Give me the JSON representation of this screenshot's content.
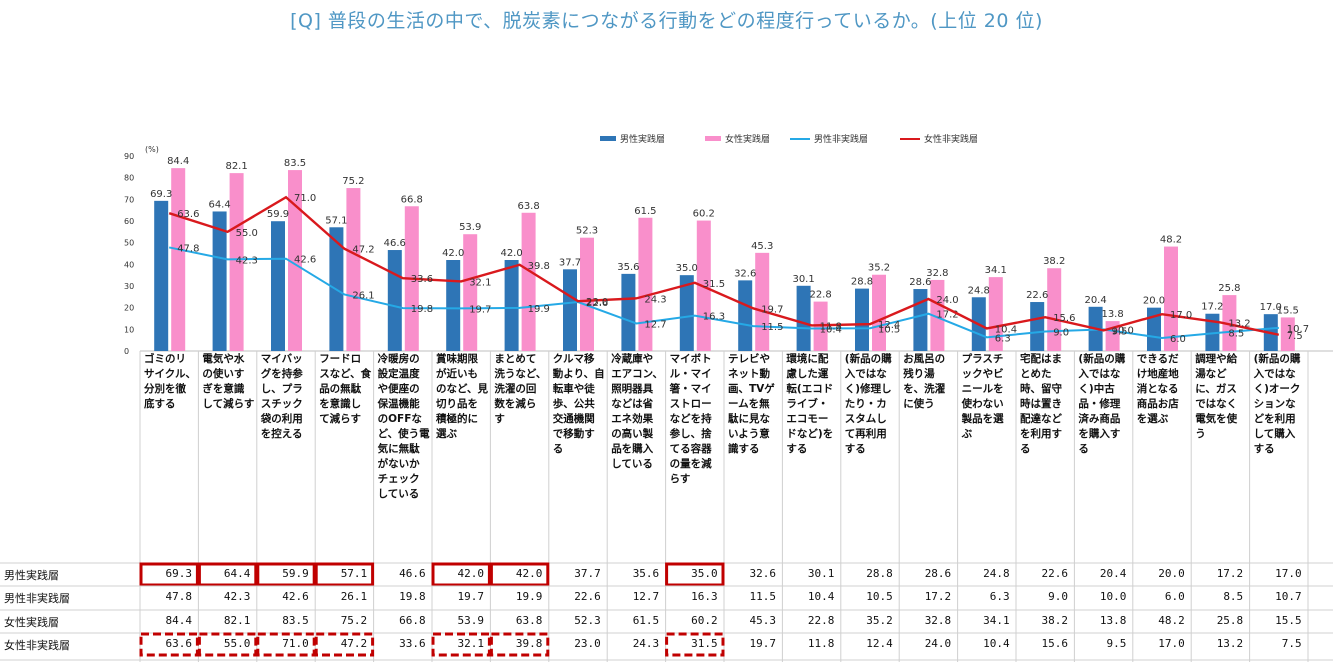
{
  "title": "[Q] 普段の生活の中で、脱炭素につながる行動をどの程度行っているか。(上位 20 位)",
  "chart_data": {
    "type": "bar",
    "title": "[Q] 普段の生活の中で、脱炭素につながる行動をどの程度行っているか。(上位 20 位)",
    "ylabel": "(%)",
    "ylim": [
      0,
      90
    ],
    "yticks": [
      0,
      10,
      20,
      30,
      40,
      50,
      60,
      70,
      80,
      90
    ],
    "categories": [
      "ゴミのリサイクル、分別を徹底する",
      "電気や水の使いすぎを意識して減らす",
      "マイバッグを持参し、プラスチック袋の利用を控える",
      "フードロスなど、食品の無駄を意識して減らす",
      "冷暖房の設定温度や便座の保温機能のOFFなど、使う電気に無駄がないかチェックしている",
      "賞味期限が近いものなど、見切り品を積極的に選ぶ",
      "まとめて洗うなど、洗濯の回数を減らす",
      "クルマ移動より、自転車や徒歩、公共交通機関で移動する",
      "冷蔵庫やエアコン、照明器具などは省エネ効果の高い製品を購入している",
      "マイボトル・マイ箸・マイストローなどを持参し、捨てる容器の量を減らす",
      "テレビやネット動画、TVゲームを無駄に見ないよう意識する",
      "環境に配慮した運転(エコドライブ・エコモードなど)をする",
      "(新品の購入ではなく)修理したり・カスタムして再利用する",
      "お風呂の残り湯を、洗濯に使う",
      "プラスチックやビニールを使わない製品を選ぶ",
      "宅配はまとめた時、留守時は置き配達などを利用する",
      "(新品の購入ではなく)中古品・修理済み商品を購入する",
      "できるだけ地産地消となる商品お店を選ぶ",
      "調理や給湯などに、ガスではなく電気を使う",
      "(新品の購入ではなく)オークションなどを利用して購入する"
    ],
    "series": [
      {
        "name": "男性実践層",
        "kind": "bar",
        "color": "#2e75b6",
        "values": [
          69.3,
          64.4,
          59.9,
          57.1,
          46.6,
          42.0,
          42.0,
          37.7,
          35.6,
          35.0,
          32.6,
          30.1,
          28.8,
          28.6,
          24.8,
          22.6,
          20.4,
          20.0,
          17.2,
          17.0
        ]
      },
      {
        "name": "女性実践層",
        "kind": "bar",
        "color": "#f98fcb",
        "values": [
          84.4,
          82.1,
          83.5,
          75.2,
          66.8,
          53.9,
          63.8,
          52.3,
          61.5,
          60.2,
          45.3,
          22.8,
          35.2,
          32.8,
          34.1,
          38.2,
          13.8,
          48.2,
          25.8,
          15.5
        ]
      },
      {
        "name": "男性非実践層",
        "kind": "line",
        "color": "#25a9e6",
        "values": [
          47.8,
          42.3,
          42.6,
          26.1,
          19.8,
          19.7,
          19.9,
          22.6,
          12.7,
          16.3,
          11.5,
          10.4,
          10.5,
          17.2,
          6.3,
          9.0,
          10.0,
          6.0,
          8.5,
          10.7
        ]
      },
      {
        "name": "女性非実践層",
        "kind": "line",
        "color": "#d9191d",
        "values": [
          63.6,
          55.0,
          71.0,
          47.2,
          33.6,
          32.1,
          39.8,
          23.0,
          24.3,
          31.5,
          19.7,
          11.8,
          12.4,
          24.0,
          10.4,
          15.6,
          9.5,
          17.0,
          13.2,
          7.5
        ]
      }
    ],
    "legend": "top-right"
  },
  "table": {
    "rows": [
      {
        "label": "男性実践層",
        "values": [
          "69.3",
          "64.4",
          "59.9",
          "57.1",
          "46.6",
          "42.0",
          "42.0",
          "37.7",
          "35.6",
          "35.0",
          "32.6",
          "30.1",
          "28.8",
          "28.6",
          "24.8",
          "22.6",
          "20.4",
          "20.0",
          "17.2",
          "17.0"
        ],
        "highlight": "solid",
        "highlight_cols": [
          0,
          1,
          2,
          3,
          5,
          6,
          9
        ]
      },
      {
        "label": "男性非実践層",
        "values": [
          "47.8",
          "42.3",
          "42.6",
          "26.1",
          "19.8",
          "19.7",
          "19.9",
          "22.6",
          "12.7",
          "16.3",
          "11.5",
          "10.4",
          "10.5",
          "17.2",
          "6.3",
          "9.0",
          "10.0",
          "6.0",
          "8.5",
          "10.7"
        ],
        "highlight": "none",
        "highlight_cols": []
      },
      {
        "label": "女性実践層",
        "values": [
          "84.4",
          "82.1",
          "83.5",
          "75.2",
          "66.8",
          "53.9",
          "63.8",
          "52.3",
          "61.5",
          "60.2",
          "45.3",
          "22.8",
          "35.2",
          "32.8",
          "34.1",
          "38.2",
          "13.8",
          "48.2",
          "25.8",
          "15.5"
        ],
        "highlight": "none",
        "highlight_cols": []
      },
      {
        "label": "女性非実践層",
        "values": [
          "63.6",
          "55.0",
          "71.0",
          "47.2",
          "33.6",
          "32.1",
          "39.8",
          "23.0",
          "24.3",
          "31.5",
          "19.7",
          "11.8",
          "12.4",
          "24.0",
          "10.4",
          "15.6",
          "9.5",
          "17.0",
          "13.2",
          "7.5"
        ],
        "highlight": "dashed",
        "highlight_cols": [
          0,
          1,
          2,
          3,
          5,
          6,
          9
        ]
      }
    ],
    "highlight_color": "#c00000"
  }
}
